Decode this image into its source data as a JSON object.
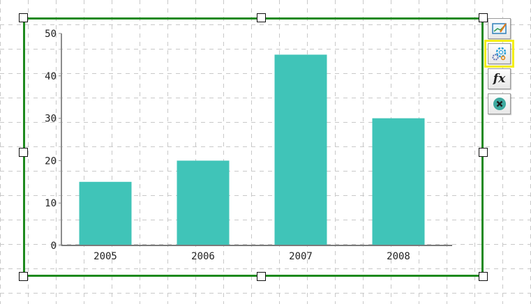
{
  "toolbar": {
    "edit_chart_icon": "chart-edit-icon",
    "settings_icon": "gear-icon",
    "formula_label": "fx",
    "delete_icon": "close-icon",
    "highlight_color": "#f4ee12"
  },
  "selection": {
    "border_color": "#1e8a1e"
  },
  "chart_data": {
    "type": "bar",
    "categories": [
      "2005",
      "2006",
      "2007",
      "2008"
    ],
    "values": [
      15,
      20,
      45,
      30
    ],
    "ylim": [
      0,
      50
    ],
    "yticks": [
      "0",
      "10",
      "20",
      "30",
      "40",
      "50"
    ],
    "bar_color": "#40c4b8",
    "grid": false,
    "title": "",
    "xlabel": "",
    "ylabel": ""
  }
}
